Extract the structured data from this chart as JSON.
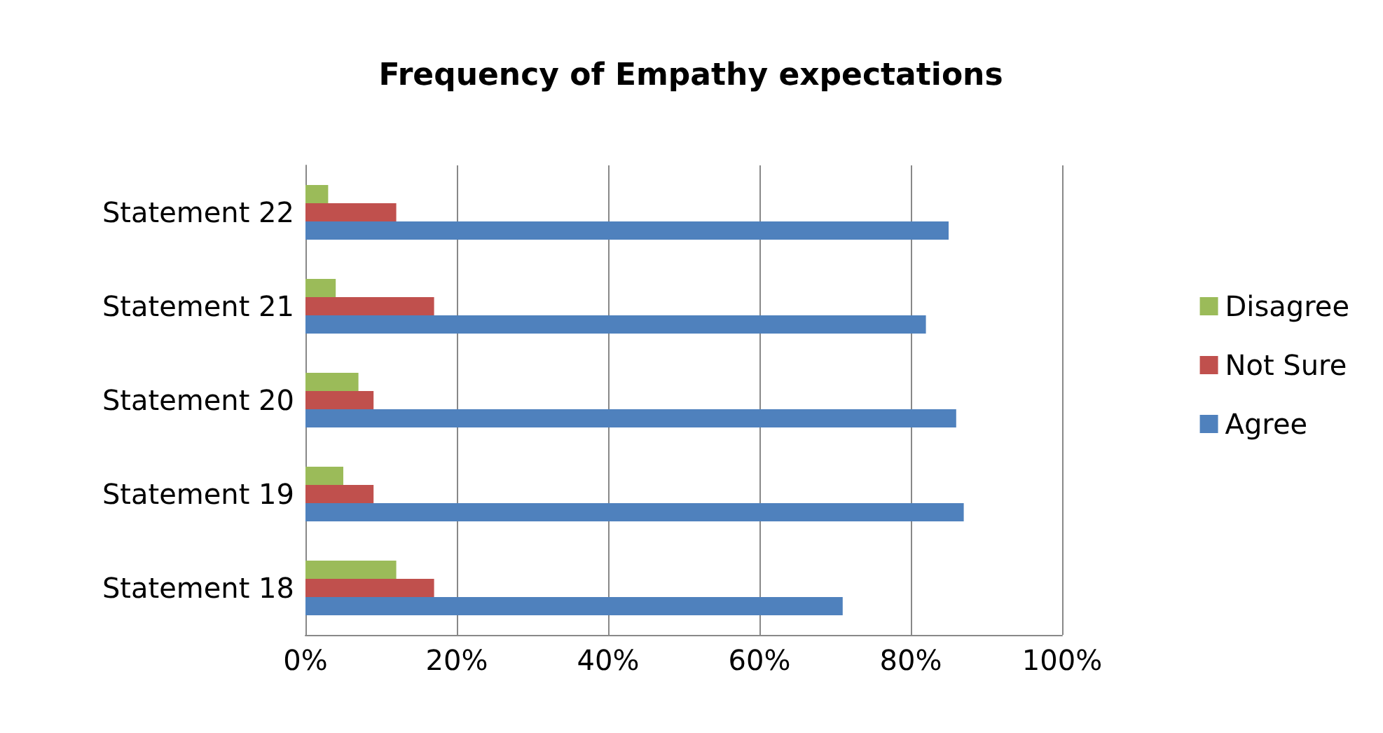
{
  "chart_data": {
    "type": "bar",
    "orientation": "horizontal",
    "title": "Frequency of Empathy expectations",
    "categories": [
      "Statement 22",
      "Statement 21",
      "Statement 20",
      "Statement 19",
      "Statement 18"
    ],
    "series": [
      {
        "name": "Disagree",
        "color": "#9bbb59",
        "values": [
          3,
          4,
          7,
          5,
          12
        ]
      },
      {
        "name": "Not Sure",
        "color": "#c0504d",
        "values": [
          12,
          17,
          9,
          9,
          17
        ]
      },
      {
        "name": "Agree",
        "color": "#4f81bd",
        "values": [
          85,
          82,
          86,
          87,
          71
        ]
      }
    ],
    "xlim": [
      0,
      100
    ],
    "xticks": [
      {
        "value": 0,
        "label": "0%"
      },
      {
        "value": 20,
        "label": "20%"
      },
      {
        "value": 40,
        "label": "40%"
      },
      {
        "value": 60,
        "label": "60%"
      },
      {
        "value": 80,
        "label": "80%"
      },
      {
        "value": 100,
        "label": "100%"
      }
    ],
    "grid": "x",
    "legend": "right"
  }
}
